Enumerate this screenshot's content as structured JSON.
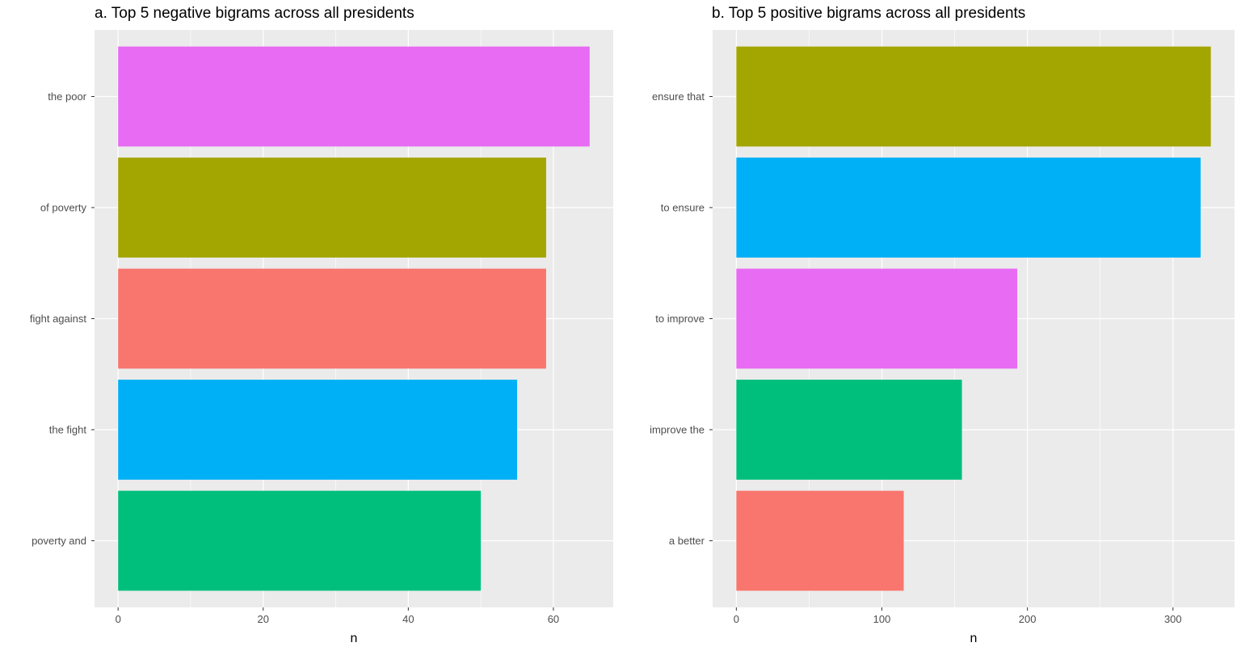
{
  "chart_data": [
    {
      "type": "bar",
      "orientation": "horizontal",
      "title": "a. Top 5 negative bigrams across all presidents",
      "xlabel": "n",
      "ylabel": "",
      "categories": [
        "the poor",
        "of poverty",
        "fight against",
        "the fight",
        "poverty and"
      ],
      "values": [
        65,
        59,
        59,
        55,
        50
      ],
      "colors": [
        "#E76BF3",
        "#A3A500",
        "#F8766D",
        "#00B0F6",
        "#00BF7D"
      ],
      "xlim": [
        -3.25,
        68.25
      ],
      "xticks": [
        0,
        20,
        40,
        60
      ],
      "grid": true,
      "legend": "none"
    },
    {
      "type": "bar",
      "orientation": "horizontal",
      "title": "b. Top 5 positive bigrams across all presidents",
      "xlabel": "n",
      "ylabel": "",
      "categories": [
        "ensure that",
        "to ensure",
        "to improve",
        "improve the",
        "a better"
      ],
      "values": [
        326,
        319,
        193,
        155,
        115
      ],
      "colors": [
        "#A3A500",
        "#00B0F6",
        "#E76BF3",
        "#00BF7D",
        "#F8766D"
      ],
      "xlim": [
        -16.3,
        342.3
      ],
      "xticks": [
        0,
        100,
        200,
        300
      ],
      "grid": true,
      "legend": "none"
    }
  ]
}
